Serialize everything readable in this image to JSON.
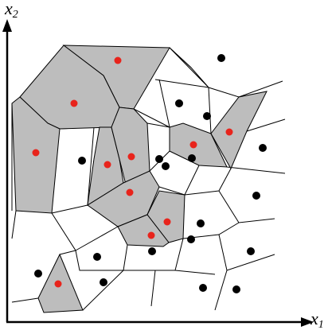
{
  "axes": {
    "y_label": "x",
    "y_subscript": "2",
    "x_label": "x",
    "x_subscript": "1"
  }
}
